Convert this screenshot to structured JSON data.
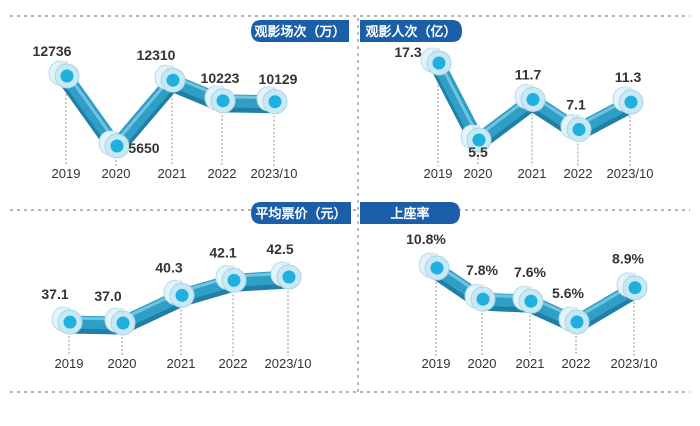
{
  "chart_data": [
    {
      "type": "line",
      "title": "观影场次（万）",
      "categories": [
        "2019",
        "2020",
        "2021",
        "2022",
        "2023/10"
      ],
      "values": [
        12736,
        5650,
        12310,
        10223,
        10129
      ],
      "labels": [
        "12736",
        "5650",
        "12310",
        "10223",
        "10129"
      ],
      "ylim": [
        4000,
        14000
      ]
    },
    {
      "type": "line",
      "title": "观影人次（亿）",
      "categories": [
        "2019",
        "2020",
        "2021",
        "2022",
        "2023/10"
      ],
      "values": [
        17.3,
        5.5,
        11.7,
        7.1,
        11.3
      ],
      "labels": [
        "17.3",
        "5.5",
        "11.7",
        "7.1",
        "11.3"
      ],
      "ylim": [
        4,
        19
      ]
    },
    {
      "type": "line",
      "title": "平均票价（元）",
      "categories": [
        "2019",
        "2020",
        "2021",
        "2022",
        "2023/10"
      ],
      "values": [
        37.1,
        37.0,
        40.3,
        42.1,
        42.5
      ],
      "labels": [
        "37.1",
        "37.0",
        "40.3",
        "42.1",
        "42.5"
      ],
      "ylim": [
        34,
        44
      ]
    },
    {
      "type": "line",
      "title": "上座率",
      "categories": [
        "2019",
        "2020",
        "2021",
        "2022",
        "2023/10"
      ],
      "values": [
        10.8,
        7.8,
        7.6,
        5.6,
        8.9
      ],
      "labels": [
        "10.8%",
        "7.8%",
        "7.6%",
        "5.6%",
        "8.9%"
      ],
      "ylim": [
        4.5,
        11.5
      ]
    }
  ],
  "colors": {
    "title_bar": "#1a5fa8",
    "line": "#2f9fc6",
    "line_dark": "#1f7fa6",
    "dot": "#1fb0e0",
    "ring": "#c8e8f4",
    "label": "#333333",
    "grid": "#8a8a8a"
  }
}
